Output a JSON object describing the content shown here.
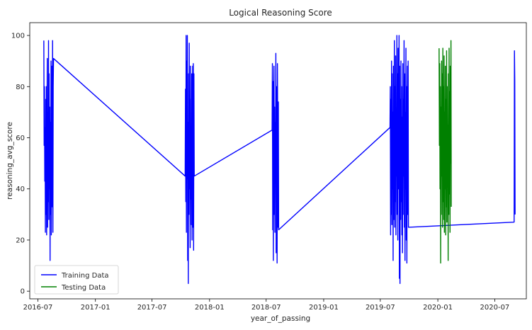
{
  "chart_data": {
    "type": "line",
    "title": "Logical Reasoning Score",
    "xlabel": "year_of_passing",
    "ylabel": "reasoning_avg_score",
    "x_axis_type": "date",
    "xlim": [
      "2016-06-05",
      "2020-10-10"
    ],
    "ylim": [
      -3,
      105
    ],
    "x_ticks": [
      "2016-07",
      "2017-01",
      "2017-07",
      "2018-01",
      "2018-07",
      "2019-01",
      "2019-07",
      "2020-01",
      "2020-07"
    ],
    "y_ticks": [
      0,
      20,
      40,
      60,
      80,
      100
    ],
    "grid": false,
    "legend": "lower-left",
    "series": [
      {
        "name": "Training Data",
        "color": "#0000ff",
        "points": [
          [
            "2016-07-20",
            98
          ],
          [
            "2016-07-21",
            57
          ],
          [
            "2016-07-22",
            80
          ],
          [
            "2016-07-23",
            43
          ],
          [
            "2016-07-24",
            64
          ],
          [
            "2016-07-25",
            23
          ],
          [
            "2016-07-26",
            75
          ],
          [
            "2016-07-27",
            30
          ],
          [
            "2016-07-28",
            80
          ],
          [
            "2016-07-29",
            22
          ],
          [
            "2016-07-30",
            62
          ],
          [
            "2016-07-31",
            91
          ],
          [
            "2016-08-01",
            25
          ],
          [
            "2016-08-02",
            70
          ],
          [
            "2016-08-03",
            35
          ],
          [
            "2016-08-04",
            98
          ],
          [
            "2016-08-05",
            28
          ],
          [
            "2016-08-06",
            85
          ],
          [
            "2016-08-07",
            40
          ],
          [
            "2016-08-08",
            72
          ],
          [
            "2016-08-09",
            12
          ],
          [
            "2016-08-10",
            66
          ],
          [
            "2016-08-11",
            30
          ],
          [
            "2016-08-12",
            90
          ],
          [
            "2016-08-13",
            22
          ],
          [
            "2016-08-14",
            74
          ],
          [
            "2016-08-15",
            88
          ],
          [
            "2016-08-16",
            33
          ],
          [
            "2016-08-17",
            98
          ],
          [
            "2016-08-18",
            23
          ],
          [
            "2016-08-19",
            80
          ],
          [
            "2016-08-20",
            91
          ],
          [
            "2017-10-15",
            45
          ],
          [
            "2017-10-16",
            79
          ],
          [
            "2017-10-17",
            35
          ],
          [
            "2017-10-18",
            100
          ],
          [
            "2017-10-19",
            23
          ],
          [
            "2017-10-20",
            90
          ],
          [
            "2017-10-21",
            44
          ],
          [
            "2017-10-22",
            100
          ],
          [
            "2017-10-23",
            12
          ],
          [
            "2017-10-24",
            66
          ],
          [
            "2017-10-25",
            3
          ],
          [
            "2017-10-26",
            85
          ],
          [
            "2017-10-27",
            30
          ],
          [
            "2017-10-28",
            97
          ],
          [
            "2017-10-29",
            40
          ],
          [
            "2017-10-30",
            75
          ],
          [
            "2017-10-31",
            17
          ],
          [
            "2017-11-01",
            88
          ],
          [
            "2017-11-02",
            36
          ],
          [
            "2017-11-03",
            60
          ],
          [
            "2017-11-04",
            26
          ],
          [
            "2017-11-05",
            85
          ],
          [
            "2017-11-06",
            20
          ],
          [
            "2017-11-07",
            70
          ],
          [
            "2017-11-08",
            88
          ],
          [
            "2017-11-09",
            25
          ],
          [
            "2017-11-10",
            89
          ],
          [
            "2017-11-11",
            16
          ],
          [
            "2017-11-12",
            85
          ],
          [
            "2017-11-13",
            45
          ],
          [
            "2018-07-20",
            63
          ],
          [
            "2018-07-21",
            89
          ],
          [
            "2018-07-22",
            24
          ],
          [
            "2018-07-23",
            82
          ],
          [
            "2018-07-24",
            12
          ],
          [
            "2018-07-25",
            75
          ],
          [
            "2018-07-26",
            88
          ],
          [
            "2018-07-27",
            30
          ],
          [
            "2018-07-28",
            72
          ],
          [
            "2018-07-29",
            23
          ],
          [
            "2018-07-30",
            66
          ],
          [
            "2018-07-31",
            44
          ],
          [
            "2018-08-01",
            93
          ],
          [
            "2018-08-02",
            15
          ],
          [
            "2018-08-03",
            80
          ],
          [
            "2018-08-04",
            36
          ],
          [
            "2018-08-05",
            11
          ],
          [
            "2018-08-06",
            89
          ],
          [
            "2018-08-07",
            58
          ],
          [
            "2018-08-08",
            25
          ],
          [
            "2018-08-09",
            74
          ],
          [
            "2018-08-10",
            24
          ],
          [
            "2019-08-01",
            64
          ],
          [
            "2019-08-02",
            80
          ],
          [
            "2019-08-03",
            22
          ],
          [
            "2019-08-04",
            75
          ],
          [
            "2019-08-05",
            30
          ],
          [
            "2019-08-06",
            90
          ],
          [
            "2019-08-07",
            26
          ],
          [
            "2019-08-08",
            85
          ],
          [
            "2019-08-09",
            40
          ],
          [
            "2019-08-10",
            70
          ],
          [
            "2019-08-11",
            12
          ],
          [
            "2019-08-12",
            88
          ],
          [
            "2019-08-13",
            28
          ],
          [
            "2019-08-14",
            60
          ],
          [
            "2019-08-15",
            98
          ],
          [
            "2019-08-16",
            25
          ],
          [
            "2019-08-17",
            80
          ],
          [
            "2019-08-18",
            35
          ],
          [
            "2019-08-19",
            92
          ],
          [
            "2019-08-20",
            22
          ],
          [
            "2019-08-21",
            70
          ],
          [
            "2019-08-22",
            45
          ],
          [
            "2019-08-23",
            100
          ],
          [
            "2019-08-24",
            30
          ],
          [
            "2019-08-25",
            85
          ],
          [
            "2019-08-26",
            20
          ],
          [
            "2019-08-27",
            95
          ],
          [
            "2019-08-28",
            40
          ],
          [
            "2019-08-29",
            60
          ],
          [
            "2019-08-30",
            100
          ],
          [
            "2019-08-31",
            5
          ],
          [
            "2019-09-01",
            88
          ],
          [
            "2019-09-02",
            3
          ],
          [
            "2019-09-03",
            75
          ],
          [
            "2019-09-04",
            28
          ],
          [
            "2019-09-05",
            90
          ],
          [
            "2019-09-06",
            35
          ],
          [
            "2019-09-07",
            80
          ],
          [
            "2019-09-08",
            22
          ],
          [
            "2019-09-09",
            68
          ],
          [
            "2019-09-10",
            15
          ],
          [
            "2019-09-11",
            89
          ],
          [
            "2019-09-12",
            30
          ],
          [
            "2019-09-13",
            75
          ],
          [
            "2019-09-14",
            45
          ],
          [
            "2019-09-15",
            98
          ],
          [
            "2019-09-16",
            25
          ],
          [
            "2019-09-17",
            85
          ],
          [
            "2019-09-18",
            12
          ],
          [
            "2019-09-19",
            70
          ],
          [
            "2019-09-20",
            40
          ],
          [
            "2019-09-21",
            95
          ],
          [
            "2019-09-22",
            20
          ],
          [
            "2019-09-23",
            80
          ],
          [
            "2019-09-24",
            11
          ],
          [
            "2019-09-25",
            65
          ],
          [
            "2019-09-26",
            88
          ],
          [
            "2019-09-27",
            30
          ],
          [
            "2019-09-28",
            90
          ],
          [
            "2019-09-29",
            25
          ],
          [
            "2020-09-01",
            27
          ],
          [
            "2020-09-02",
            94
          ],
          [
            "2020-09-03",
            82
          ],
          [
            "2020-09-04",
            30
          ]
        ]
      },
      {
        "name": "Testing Data",
        "color": "#008000",
        "points": [
          [
            "2020-01-05",
            95
          ],
          [
            "2020-01-06",
            57
          ],
          [
            "2020-01-07",
            89
          ],
          [
            "2020-01-08",
            40
          ],
          [
            "2020-01-09",
            80
          ],
          [
            "2020-01-10",
            11
          ],
          [
            "2020-01-11",
            72
          ],
          [
            "2020-01-12",
            30
          ],
          [
            "2020-01-13",
            90
          ],
          [
            "2020-01-14",
            45
          ],
          [
            "2020-01-15",
            85
          ],
          [
            "2020-01-16",
            25
          ],
          [
            "2020-01-17",
            95
          ],
          [
            "2020-01-18",
            35
          ],
          [
            "2020-01-19",
            80
          ],
          [
            "2020-01-20",
            28
          ],
          [
            "2020-01-21",
            92
          ],
          [
            "2020-01-22",
            23
          ],
          [
            "2020-01-23",
            70
          ],
          [
            "2020-01-24",
            40
          ],
          [
            "2020-01-25",
            88
          ],
          [
            "2020-01-26",
            22
          ],
          [
            "2020-01-27",
            75
          ],
          [
            "2020-01-28",
            33
          ],
          [
            "2020-01-29",
            94
          ],
          [
            "2020-01-30",
            27
          ],
          [
            "2020-01-31",
            80
          ],
          [
            "2020-02-01",
            45
          ],
          [
            "2020-02-02",
            65
          ],
          [
            "2020-02-03",
            12
          ],
          [
            "2020-02-04",
            85
          ],
          [
            "2020-02-05",
            30
          ],
          [
            "2020-02-06",
            95
          ],
          [
            "2020-02-07",
            38
          ],
          [
            "2020-02-08",
            78
          ],
          [
            "2020-02-09",
            23
          ],
          [
            "2020-02-10",
            88
          ],
          [
            "2020-02-11",
            50
          ],
          [
            "2020-02-12",
            98
          ],
          [
            "2020-02-13",
            33
          ]
        ]
      }
    ]
  }
}
